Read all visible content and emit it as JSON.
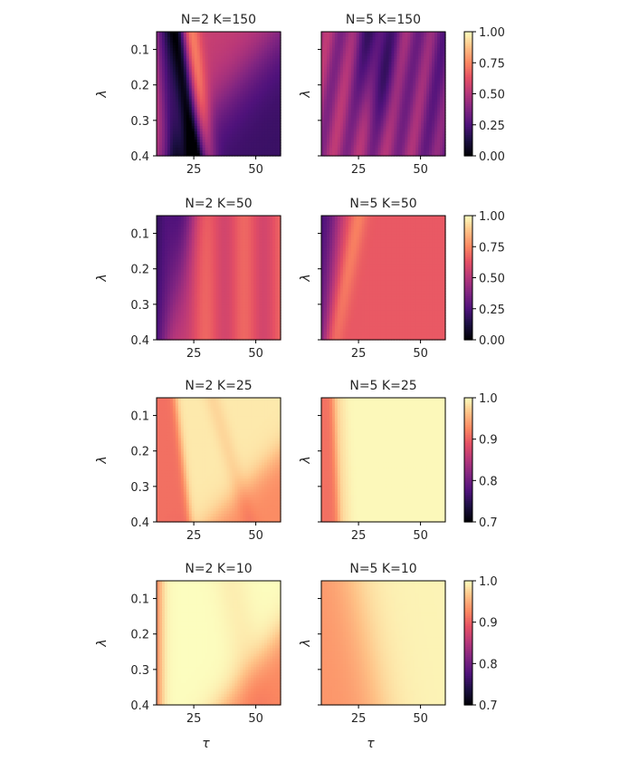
{
  "chart_data": {
    "type": "heatmap",
    "colormap": "magma",
    "x_axis": {
      "label": "τ",
      "range": [
        10,
        60
      ],
      "ticks": [
        25,
        50
      ]
    },
    "y_axis": {
      "label": "λ",
      "range": [
        0.05,
        0.4
      ],
      "inverted": true,
      "ticks": [
        0.1,
        0.2,
        0.3,
        0.4
      ]
    },
    "tick_labels": {
      "x": [
        "25",
        "50"
      ],
      "y": [
        "0.1",
        "0.2",
        "0.3",
        "0.4"
      ]
    },
    "rows": [
      {
        "colorbar": {
          "range": [
            0.0,
            1.0
          ],
          "ticks": [
            "1.00",
            "0.75",
            "0.50",
            "0.25",
            "0.00"
          ]
        },
        "panels": [
          {
            "title": "N=2 K=150",
            "N": 2,
            "K": 150
          },
          {
            "title": "N=5 K=150",
            "N": 5,
            "K": 150
          }
        ]
      },
      {
        "colorbar": {
          "range": [
            0.0,
            1.0
          ],
          "ticks": [
            "1.00",
            "0.75",
            "0.50",
            "0.25",
            "0.00"
          ]
        },
        "panels": [
          {
            "title": "N=2 K=50",
            "N": 2,
            "K": 50
          },
          {
            "title": "N=5 K=50",
            "N": 5,
            "K": 50
          }
        ]
      },
      {
        "colorbar": {
          "range": [
            0.7,
            1.0
          ],
          "ticks": [
            "1.0",
            "0.9",
            "0.8",
            "0.7"
          ]
        },
        "panels": [
          {
            "title": "N=2 K=25",
            "N": 2,
            "K": 25
          },
          {
            "title": "N=5 K=25",
            "N": 5,
            "K": 25
          }
        ]
      },
      {
        "colorbar": {
          "range": [
            0.7,
            1.0
          ],
          "ticks": [
            "1.0",
            "0.9",
            "0.8",
            "0.7"
          ]
        },
        "panels": [
          {
            "title": "N=2 K=10",
            "N": 2,
            "K": 10
          },
          {
            "title": "N=5 K=10",
            "N": 5,
            "K": 10
          }
        ]
      }
    ]
  }
}
